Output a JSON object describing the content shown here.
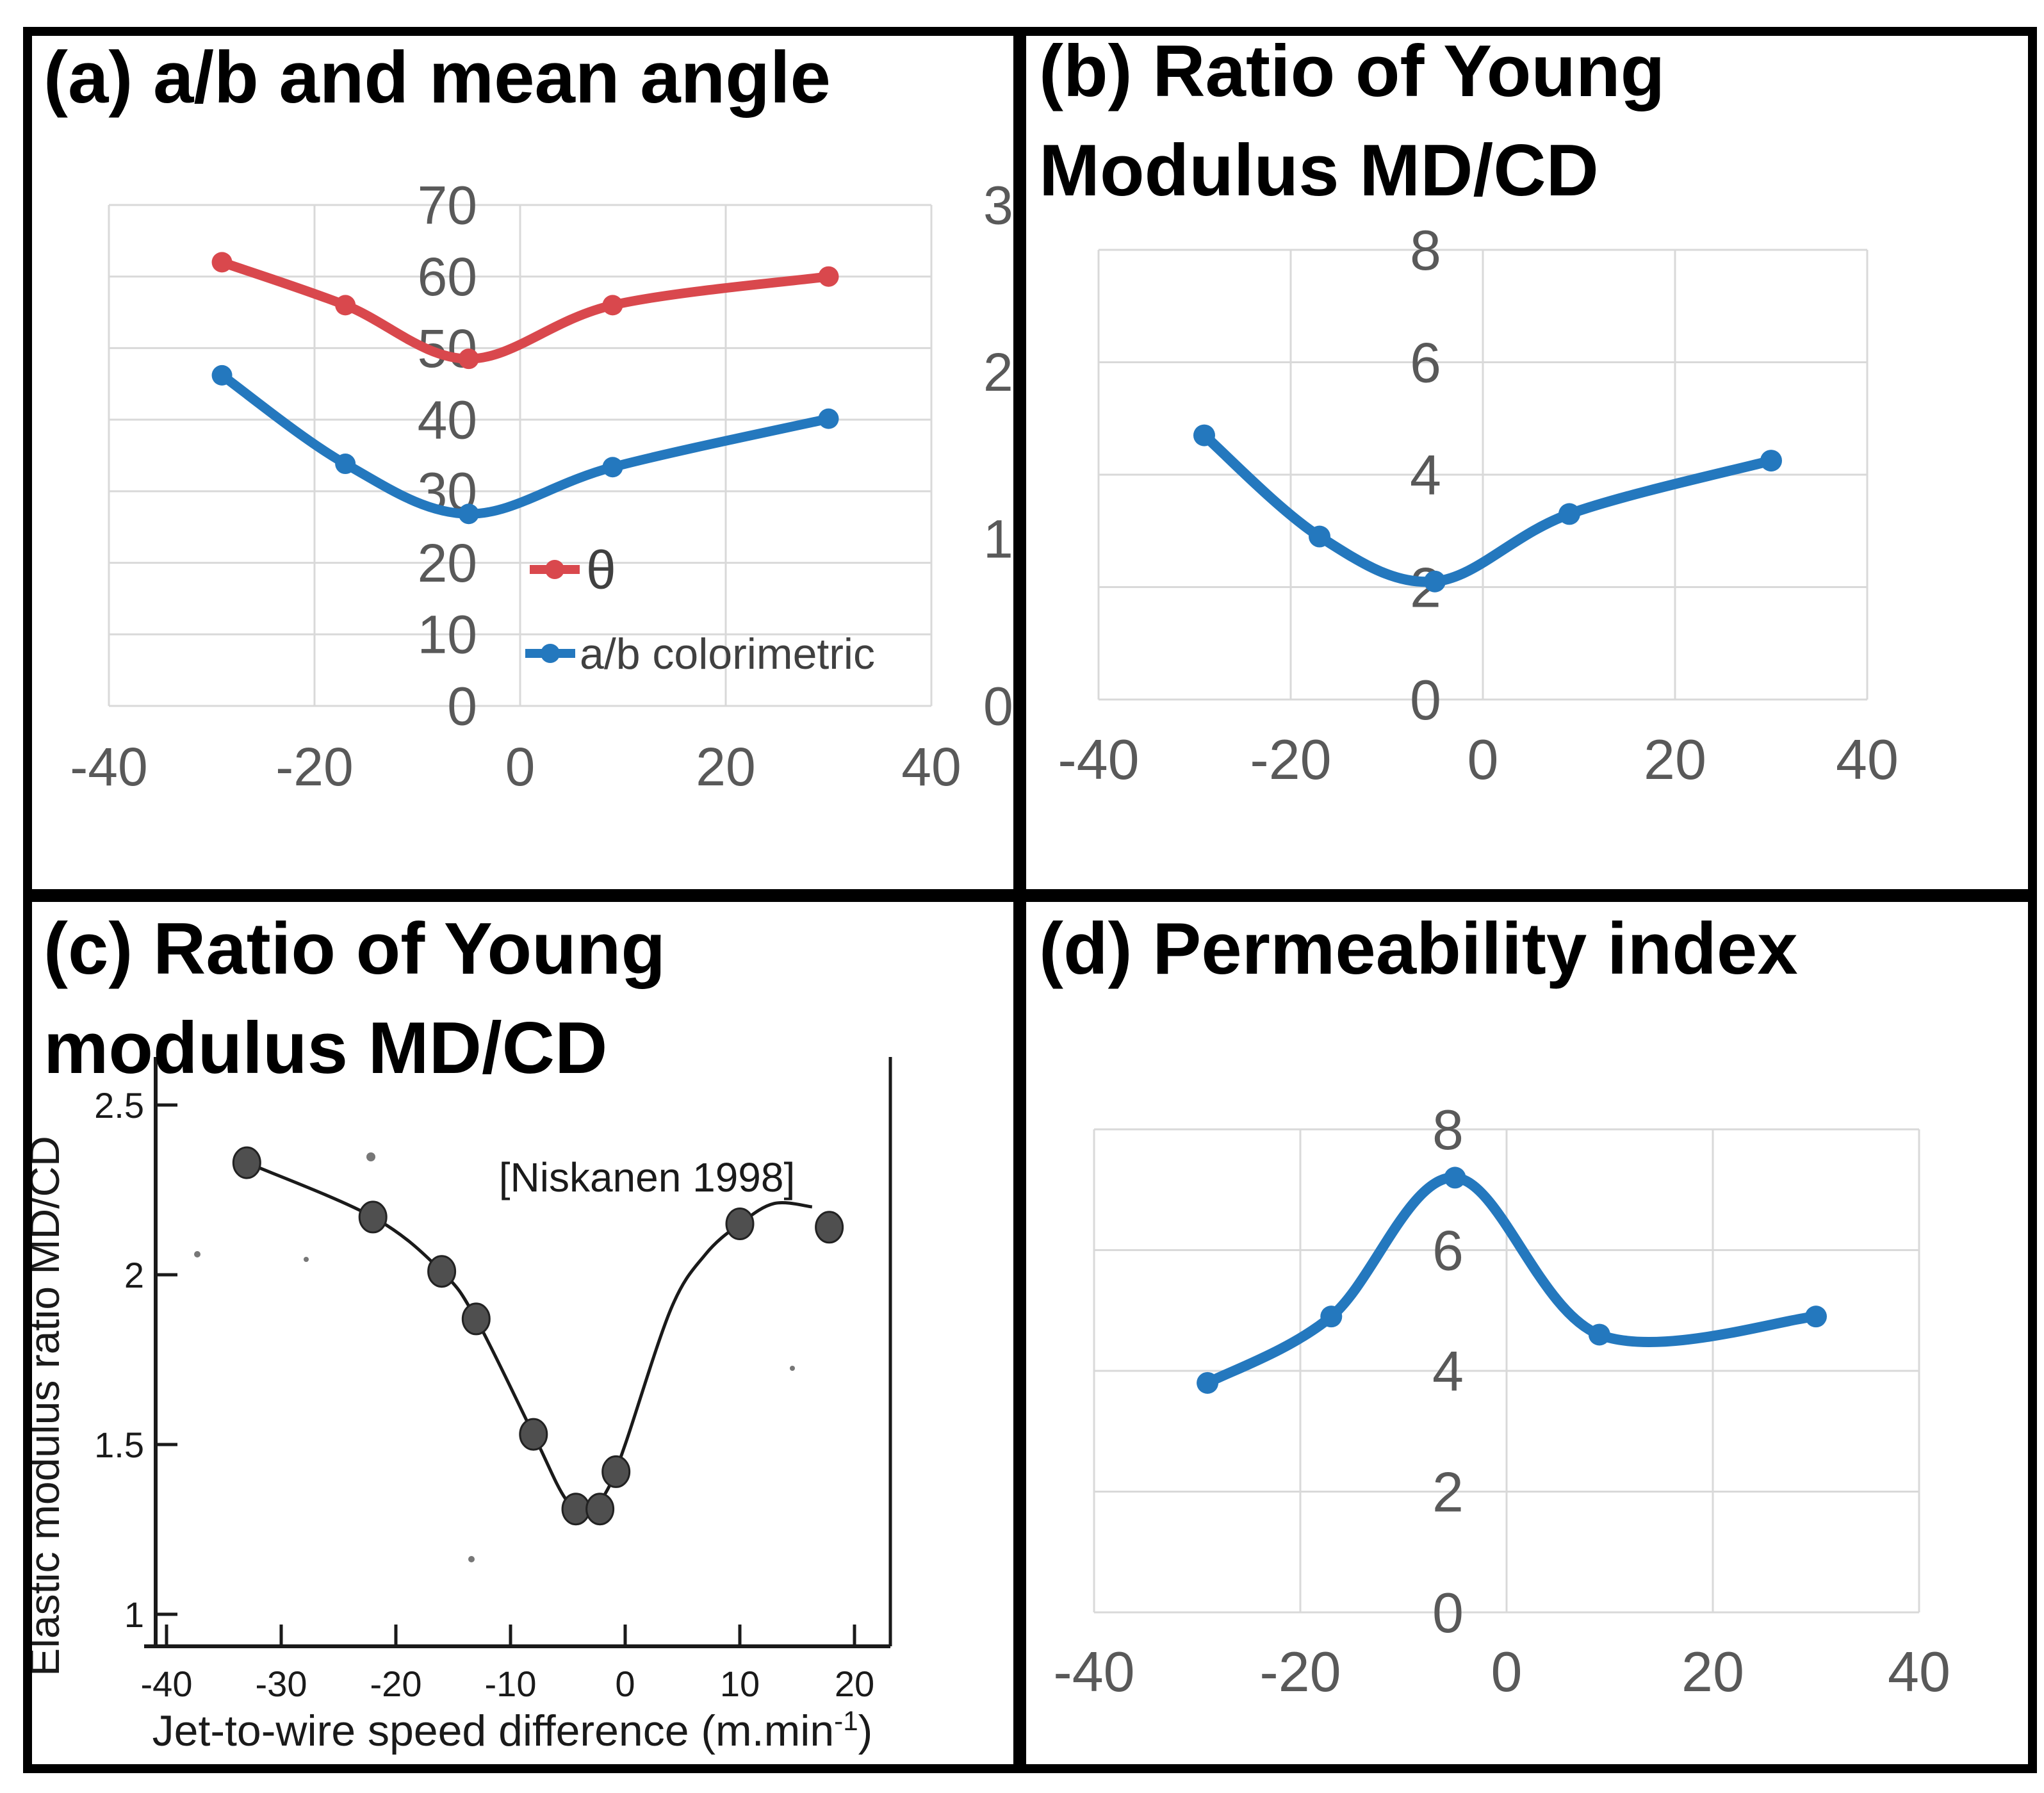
{
  "figure": {
    "colors": {
      "blue": "#2478BE",
      "red": "#D9484D",
      "grid": "#D9D9D9",
      "tick_text": "#595959",
      "legend_text": "#404040",
      "title_text": "#000000",
      "scan_ink": "#1A1A1A",
      "scan_dot_fill": "#4F4F4F",
      "border": "#000000"
    }
  },
  "chart_data": [
    {
      "id": "a",
      "type": "line",
      "title_lines": [
        "(a) a/b and mean angle"
      ],
      "x": [
        -29,
        -17,
        -5,
        9,
        30
      ],
      "xlim": [
        -40,
        40
      ],
      "xticks": [
        -40,
        -20,
        0,
        20,
        40
      ],
      "left_axis": {
        "label": "",
        "lim": [
          0,
          70
        ],
        "ticks": [
          70,
          60,
          50,
          40,
          30,
          20,
          10,
          0
        ]
      },
      "right_axis": {
        "label": "",
        "lim": [
          0,
          3
        ],
        "ticks": [
          3,
          2,
          1,
          0
        ]
      },
      "grid": true,
      "legend_position": "inside-center-bottom",
      "series": [
        {
          "name": "θ",
          "axis": "left",
          "color_key": "red",
          "values": [
            62,
            56,
            48.5,
            56,
            60
          ]
        },
        {
          "name": "a/b colorimetric",
          "axis": "right",
          "color_key": "blue",
          "values": [
            1.98,
            1.45,
            1.15,
            1.43,
            1.72
          ]
        }
      ]
    },
    {
      "id": "b",
      "type": "line",
      "title_lines": [
        "(b) Ratio of Young",
        "Modulus MD/CD"
      ],
      "x": [
        -29,
        -17,
        -5,
        9,
        30
      ],
      "xlim": [
        -40,
        40
      ],
      "xticks": [
        -40,
        -20,
        0,
        20,
        40
      ],
      "ylim": [
        0,
        8
      ],
      "yticks": [
        8,
        6,
        4,
        2,
        0
      ],
      "grid": true,
      "series": [
        {
          "name": "Ratio of Young Modulus MD/CD",
          "color_key": "blue",
          "values": [
            4.7,
            2.9,
            2.1,
            3.3,
            4.25
          ]
        }
      ]
    },
    {
      "id": "c",
      "type": "scatter",
      "title_lines": [
        "(c) Ratio of Young",
        "modulus MD/CD"
      ],
      "annotation": "[Niskanen 1998]",
      "ylabel": "Elastic  modulus ratio MD/CD",
      "xlabel": {
        "main": "Jet-to-wire speed difference (m.min",
        "sup": "-1",
        "end": ")"
      },
      "xlim": [
        -42,
        23
      ],
      "ylim": [
        0.9,
        2.55
      ],
      "xticks": [
        -40,
        -30,
        -20,
        -10,
        0,
        10,
        20
      ],
      "yticks": [
        2.5,
        2,
        1.5,
        1
      ],
      "grid": false,
      "points": [
        [
          -33,
          2.33
        ],
        [
          -22,
          2.17
        ],
        [
          -16,
          2.01
        ],
        [
          -13,
          1.87
        ],
        [
          -8,
          1.53
        ],
        [
          -4.3,
          1.31
        ],
        [
          -2.2,
          1.31
        ],
        [
          -0.8,
          1.42
        ],
        [
          10,
          2.15
        ],
        [
          17.8,
          2.14
        ]
      ],
      "curve": [
        [
          -33,
          2.33
        ],
        [
          -22,
          2.17
        ],
        [
          -16,
          2.01
        ],
        [
          -13,
          1.87
        ],
        [
          -8,
          1.53
        ],
        [
          -5.2,
          1.34
        ],
        [
          -3.2,
          1.3
        ],
        [
          -1.5,
          1.37
        ],
        [
          0,
          1.5
        ],
        [
          4,
          1.9
        ],
        [
          7,
          2.06
        ],
        [
          10,
          2.15
        ],
        [
          13,
          2.21
        ],
        [
          16.3,
          2.2
        ]
      ]
    },
    {
      "id": "d",
      "type": "line",
      "title_lines": [
        "(d) Permeability index"
      ],
      "x": [
        -29,
        -17,
        -5,
        9,
        30
      ],
      "xlim": [
        -40,
        40
      ],
      "xticks": [
        -40,
        -20,
        0,
        20,
        40
      ],
      "ylim": [
        0,
        8
      ],
      "yticks": [
        8,
        6,
        4,
        2,
        0
      ],
      "grid": true,
      "series": [
        {
          "name": "Permeability index",
          "color_key": "blue",
          "values": [
            3.8,
            4.9,
            7.2,
            4.6,
            4.9
          ]
        }
      ]
    }
  ]
}
